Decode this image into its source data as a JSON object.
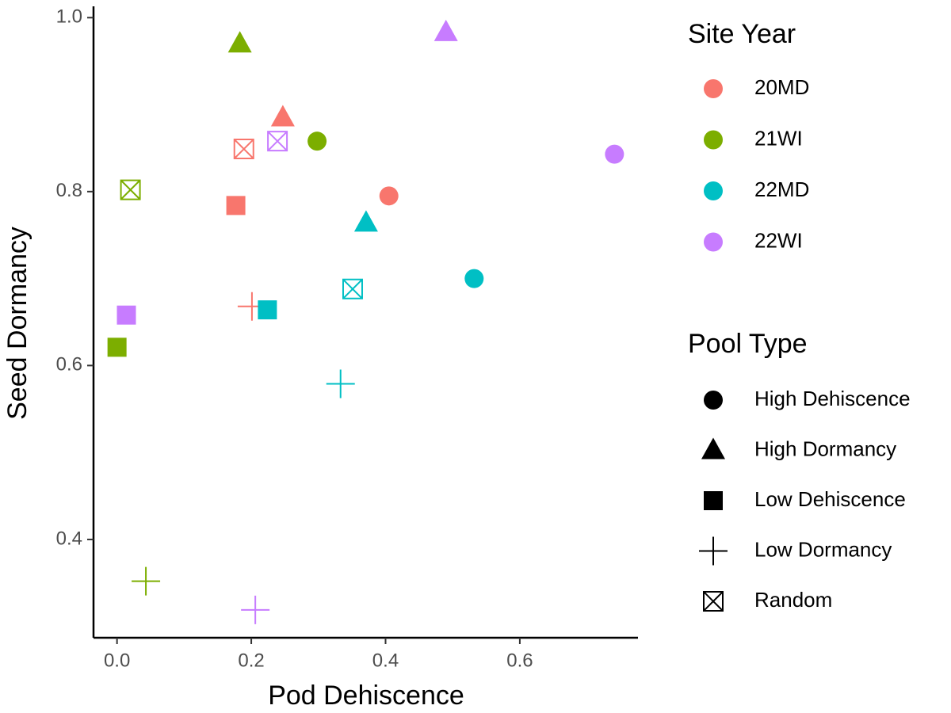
{
  "chart_data": {
    "type": "scatter",
    "xlabel": "Pod Dehiscence",
    "ylabel": "Seed Dormancy",
    "xlim": [
      -0.035,
      0.776
    ],
    "ylim": [
      0.287,
      1.013
    ],
    "xticks": [
      {
        "value": 0,
        "label": "0.0"
      },
      0.2,
      0.4,
      0.6
    ],
    "yticks": [
      0.4,
      0.6,
      0.8,
      {
        "value": 1,
        "label": "1.0"
      }
    ],
    "color_legend_title": "Site Year",
    "shape_legend_title": "Pool Type",
    "pool_types": [
      "High Dehiscence",
      "High Dormancy",
      "Low Dehiscence",
      "Low Dormancy",
      "Random"
    ],
    "shapes": [
      "circle",
      "triangle",
      "square",
      "plus",
      "boxed-x"
    ],
    "series": [
      {
        "name": "20MD",
        "color": "#F8766D",
        "x": [
          0.405,
          0.247,
          0.177,
          0.201,
          0.189
        ],
        "values": [
          0.795,
          0.885,
          0.784,
          0.668,
          0.849
        ]
      },
      {
        "name": "21WI",
        "color": "#7CAE00",
        "x": [
          0.298,
          0.183,
          0.0,
          0.043,
          0.02
        ],
        "values": [
          0.858,
          0.97,
          0.621,
          0.352,
          0.802
        ]
      },
      {
        "name": "22MD",
        "color": "#00BFC4",
        "x": [
          0.532,
          0.371,
          0.224,
          0.333,
          0.351
        ],
        "values": [
          0.7,
          0.764,
          0.664,
          0.579,
          0.688
        ]
      },
      {
        "name": "22WI",
        "color": "#C77CFF",
        "x": [
          0.741,
          0.49,
          0.014,
          0.206,
          0.239
        ],
        "values": [
          0.843,
          0.983,
          0.658,
          0.319,
          0.858
        ]
      }
    ]
  }
}
